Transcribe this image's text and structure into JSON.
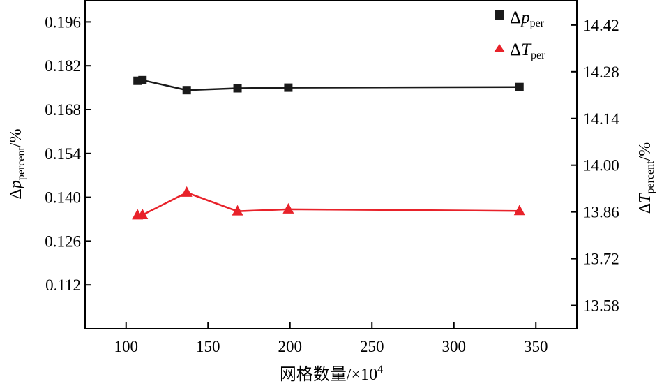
{
  "chart_data": {
    "type": "line",
    "xlabel": "网格数量/×10",
    "xlabel_sup": "4",
    "y_left_label": {
      "delta": "Δ",
      "var": "p",
      "sub": "percent",
      "unit": "/%"
    },
    "y_right_label": {
      "delta": "Δ",
      "var": "T",
      "sub": "percent",
      "unit": "/%"
    },
    "xlim": [
      75,
      375
    ],
    "xticks": [
      100,
      150,
      200,
      250,
      300,
      350
    ],
    "ylim_left": [
      0.098,
      0.203
    ],
    "yticks_left": [
      "0.196",
      "0.182",
      "0.168",
      "0.154",
      "0.140",
      "0.126",
      "0.112"
    ],
    "ylim_right": [
      13.51,
      14.495
    ],
    "yticks_right": [
      "14.42",
      "14.28",
      "14.14",
      "14.00",
      "13.86",
      "13.72",
      "13.58"
    ],
    "legend_position": "top-right",
    "grid": false,
    "series": [
      {
        "name": {
          "delta": "Δ",
          "var": "p",
          "sub": "per"
        },
        "axis": "left",
        "marker": "square",
        "color": "#1a1a1a",
        "x": [
          107,
          110,
          137,
          168,
          199,
          340
        ],
        "y": [
          0.1772,
          0.1774,
          0.1742,
          0.1748,
          0.175,
          0.1752
        ]
      },
      {
        "name": {
          "delta": "Δ",
          "var": "T",
          "sub": "per"
        },
        "axis": "right",
        "marker": "triangle",
        "color": "#e8222a",
        "x": [
          107,
          110,
          137,
          168,
          199,
          340
        ],
        "y": [
          13.85,
          13.851,
          13.918,
          13.862,
          13.868,
          13.863
        ]
      }
    ]
  }
}
